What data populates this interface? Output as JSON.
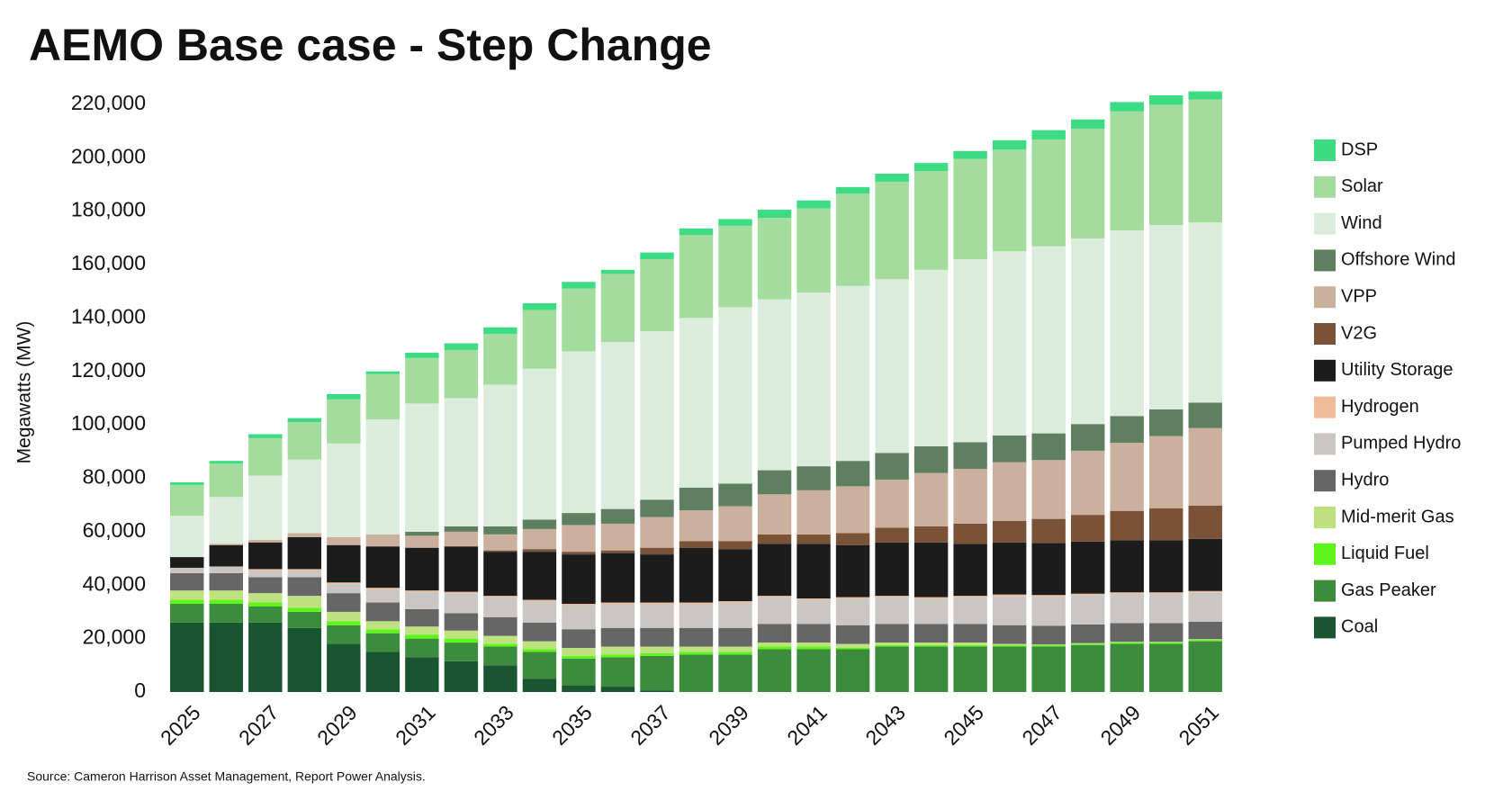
{
  "chart_data": {
    "type": "stacked_bar",
    "title": "AEMO Base case - Step Change",
    "y_label": "Megawatts (MW)",
    "source": "Source: Cameron Harrison Asset Management, Report Power Analysis.",
    "categories": [
      "2025",
      null,
      "2027",
      null,
      "2029",
      null,
      "2031",
      null,
      "2033",
      null,
      "2035",
      null,
      "2037",
      null,
      "2039",
      null,
      "2041",
      null,
      "2043",
      null,
      "2045",
      null,
      "2047",
      null,
      "2049",
      null,
      "2051"
    ],
    "ylim": [
      0,
      226000
    ],
    "yticks": [
      0,
      {
        "value": 20000,
        "label": "20,000"
      },
      {
        "value": 40000,
        "label": "40,000"
      },
      {
        "value": 60000,
        "label": "60,000"
      },
      {
        "value": 80000,
        "label": "80,000"
      },
      {
        "value": 100000,
        "label": "100,000"
      },
      {
        "value": 120000,
        "label": "120,000"
      },
      {
        "value": 140000,
        "label": "140,000"
      },
      {
        "value": 160000,
        "label": "160,000"
      },
      {
        "value": 180000,
        "label": "180,000"
      },
      {
        "value": 200000,
        "label": "200,000"
      },
      {
        "value": 220000,
        "label": "220,000"
      }
    ],
    "legend": "right",
    "series": [
      {
        "name": "Coal",
        "color": "#1a5531",
        "values": [
          26000,
          26000,
          26000,
          24000,
          18000,
          15000,
          13000,
          11500,
          10000,
          5000,
          2500,
          2000,
          500,
          0,
          0,
          0,
          0,
          0,
          0,
          0,
          0,
          0,
          0,
          0,
          0,
          0,
          0
        ]
      },
      {
        "name": "Gas Peaker",
        "color": "#3d8b3d",
        "values": [
          7000,
          7000,
          6000,
          6000,
          7000,
          7000,
          7000,
          7000,
          7000,
          10000,
          10000,
          11000,
          13000,
          14000,
          14000,
          16000,
          16000,
          16000,
          17000,
          17000,
          17000,
          17000,
          17000,
          17500,
          18000,
          18000,
          19000
        ]
      },
      {
        "name": "Liquid Fuel",
        "color": "#5ef51a",
        "values": [
          1500,
          1500,
          1500,
          1500,
          1500,
          1500,
          1500,
          1500,
          1000,
          1000,
          1000,
          1000,
          1000,
          1000,
          1000,
          1000,
          1000,
          500,
          500,
          500,
          500,
          500,
          500,
          500,
          500,
          500,
          500
        ]
      },
      {
        "name": "Mid-merit Gas",
        "color": "#bde27f",
        "values": [
          3500,
          3500,
          3500,
          4500,
          3500,
          3000,
          3000,
          3000,
          3000,
          3000,
          3000,
          3000,
          2500,
          2000,
          2000,
          1500,
          1500,
          1500,
          1000,
          1000,
          1000,
          500,
          300,
          300,
          300,
          300,
          300
        ]
      },
      {
        "name": "Hydro",
        "color": "#666666",
        "values": [
          6500,
          6500,
          6000,
          7000,
          7000,
          7000,
          6500,
          6500,
          7000,
          7000,
          7000,
          7000,
          7000,
          7000,
          7000,
          7000,
          7000,
          7000,
          7000,
          7000,
          7000,
          7000,
          7000,
          7000,
          7000,
          7000,
          6500
        ]
      },
      {
        "name": "Pumped Hydro",
        "color": "#c9c6c3",
        "values": [
          2000,
          2500,
          2500,
          2500,
          3500,
          5000,
          6500,
          7500,
          7500,
          8000,
          9000,
          9000,
          9000,
          9000,
          9500,
          10000,
          9000,
          10000,
          10000,
          9500,
          10000,
          11000,
          11000,
          11000,
          11000,
          11000,
          11000
        ]
      },
      {
        "name": "Hydrogen",
        "color": "#efbb98",
        "values": [
          0,
          0,
          500,
          500,
          500,
          500,
          500,
          500,
          500,
          500,
          500,
          500,
          500,
          500,
          500,
          500,
          500,
          500,
          500,
          500,
          500,
          500,
          500,
          500,
          500,
          500,
          500
        ]
      },
      {
        "name": "Utility Storage",
        "color": "#1c1c1c",
        "values": [
          4000,
          8000,
          10000,
          12000,
          14000,
          15500,
          16000,
          17000,
          16500,
          18000,
          18500,
          18500,
          18000,
          20500,
          19500,
          19500,
          20500,
          19500,
          20000,
          20500,
          19500,
          19500,
          19500,
          19500,
          19500,
          19500,
          19500
        ]
      },
      {
        "name": "V2G",
        "color": "#7a5238",
        "values": [
          0,
          0,
          0,
          0,
          0,
          0,
          0,
          0,
          500,
          1000,
          1000,
          1000,
          2500,
          2500,
          3000,
          3500,
          3500,
          4500,
          5500,
          6000,
          7500,
          8000,
          9000,
          10000,
          11000,
          12000,
          12500
        ]
      },
      {
        "name": "VPP",
        "color": "#cbb09e",
        "values": [
          0,
          500,
          1000,
          1500,
          3000,
          4500,
          4500,
          5500,
          6000,
          7500,
          10000,
          10000,
          11500,
          11500,
          13000,
          15000,
          16500,
          17500,
          18000,
          20000,
          20500,
          22000,
          22000,
          24000,
          25500,
          27000,
          29000
        ]
      },
      {
        "name": "Offshore Wind",
        "color": "#5e8060",
        "values": [
          0,
          0,
          0,
          0,
          0,
          0,
          1500,
          2000,
          3000,
          3500,
          4500,
          5500,
          6500,
          8500,
          8500,
          9000,
          9000,
          9500,
          10000,
          10000,
          10000,
          10000,
          10000,
          10000,
          10000,
          10000,
          9500
        ]
      },
      {
        "name": "Wind",
        "color": "#dcecdc",
        "values": [
          15500,
          17500,
          24000,
          27500,
          35000,
          43000,
          48000,
          48000,
          53000,
          56500,
          60500,
          62500,
          63000,
          63500,
          66000,
          64000,
          65000,
          65500,
          65000,
          66000,
          68500,
          69000,
          70000,
          69500,
          69500,
          69000,
          67500
        ]
      },
      {
        "name": "Solar",
        "color": "#a3dc9c",
        "values": [
          11500,
          12500,
          14000,
          14000,
          16500,
          17000,
          17000,
          18000,
          19000,
          22000,
          23500,
          25500,
          27000,
          31000,
          30500,
          30500,
          31500,
          34500,
          36500,
          37000,
          37500,
          38000,
          40000,
          41000,
          44500,
          45000,
          46000
        ]
      },
      {
        "name": "DSP",
        "color": "#3ddc84",
        "values": [
          1000,
          1000,
          1500,
          1500,
          2000,
          1000,
          2000,
          2500,
          2500,
          2500,
          2500,
          1500,
          2500,
          2500,
          2500,
          3000,
          3000,
          2500,
          3000,
          3000,
          3000,
          3500,
          3500,
          3500,
          3500,
          3500,
          3000
        ]
      }
    ]
  }
}
